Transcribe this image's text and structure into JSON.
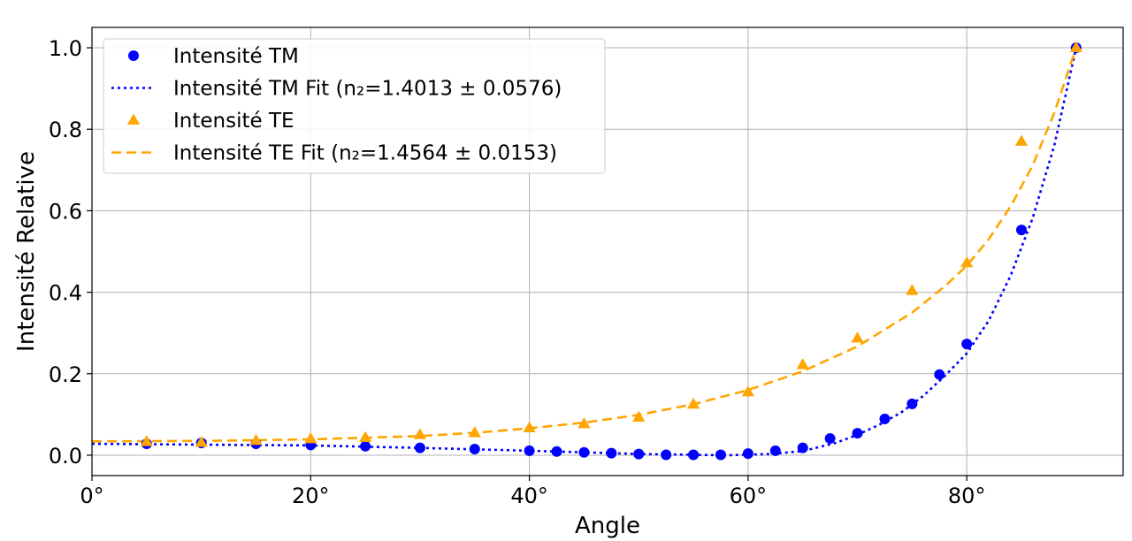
{
  "chart_data": {
    "type": "scatter",
    "title": "",
    "xlabel": "Angle",
    "ylabel": "Intensité Relative",
    "xlim": [
      0,
      94.3
    ],
    "ylim": [
      -0.05,
      1.05
    ],
    "x_ticks": [
      0,
      20,
      40,
      60,
      80
    ],
    "x_tick_labels": [
      "0°",
      "20°",
      "40°",
      "60°",
      "80°"
    ],
    "y_ticks": [
      0.0,
      0.2,
      0.4,
      0.6,
      0.8,
      1.0
    ],
    "y_tick_labels": [
      "0.0",
      "0.2",
      "0.4",
      "0.6",
      "0.8",
      "1.0"
    ],
    "grid": true,
    "legend_position": "top-left",
    "series": [
      {
        "name": "Intensité TM",
        "kind": "markers",
        "marker": "circle",
        "color": "#0000ff",
        "x": [
          5,
          10,
          15,
          20,
          25,
          30,
          35,
          40,
          42.5,
          45,
          47.5,
          50,
          52.5,
          55,
          57.5,
          60,
          62.5,
          65,
          67.5,
          70,
          72.5,
          75,
          77.5,
          80,
          85,
          90
        ],
        "y": [
          0.028,
          0.03,
          0.028,
          0.025,
          0.022,
          0.018,
          0.015,
          0.011,
          0.009,
          0.007,
          0.005,
          0.003,
          0.001,
          0.001,
          0.001,
          0.004,
          0.011,
          0.018,
          0.041,
          0.054,
          0.089,
          0.126,
          0.198,
          0.273,
          0.553,
          1.0
        ]
      },
      {
        "name": "Intensité TM Fit (n₂=1.4013 ± 0.0576)",
        "kind": "line",
        "dash": "dotted",
        "color": "#0000ff",
        "x": [
          0,
          10,
          20,
          30,
          40,
          45,
          50,
          55,
          58,
          62,
          65,
          68,
          70,
          72,
          74,
          76,
          78,
          80,
          82,
          84,
          86,
          88,
          89,
          90
        ],
        "y": [
          0.028,
          0.026,
          0.024,
          0.018,
          0.011,
          0.007,
          0.003,
          0.001,
          0.0,
          0.003,
          0.01,
          0.03,
          0.05,
          0.075,
          0.105,
          0.145,
          0.195,
          0.25,
          0.33,
          0.44,
          0.58,
          0.76,
          0.88,
          1.0
        ]
      },
      {
        "name": "Intensité TE",
        "kind": "markers",
        "marker": "triangle",
        "color": "#ffa500",
        "x": [
          5,
          10,
          15,
          20,
          25,
          30,
          35,
          40,
          45,
          50,
          55,
          60,
          65,
          70,
          75,
          80,
          85,
          90
        ],
        "y": [
          0.033,
          0.031,
          0.036,
          0.04,
          0.043,
          0.05,
          0.055,
          0.067,
          0.077,
          0.093,
          0.125,
          0.155,
          0.222,
          0.287,
          0.404,
          0.472,
          0.77,
          1.0
        ]
      },
      {
        "name": "Intensité TE Fit (n₂=1.4564 ± 0.0153)",
        "kind": "line",
        "dash": "dashed",
        "color": "#ffa500",
        "x": [
          0,
          10,
          20,
          30,
          35,
          40,
          45,
          50,
          55,
          60,
          65,
          70,
          75,
          78,
          80,
          82,
          84,
          86,
          88,
          90
        ],
        "y": [
          0.034,
          0.035,
          0.039,
          0.047,
          0.055,
          0.066,
          0.08,
          0.099,
          0.125,
          0.16,
          0.206,
          0.267,
          0.35,
          0.415,
          0.465,
          0.53,
          0.61,
          0.71,
          0.84,
          1.0
        ]
      }
    ]
  }
}
